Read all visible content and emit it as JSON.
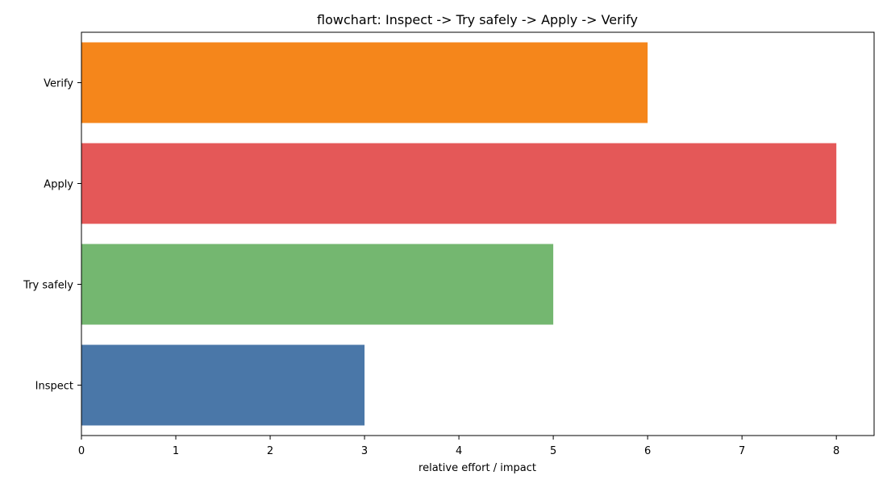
{
  "chart_data": {
    "type": "bar",
    "orientation": "horizontal",
    "title": "flowchart: Inspect -> Try safely -> Apply -> Verify",
    "xlabel": "relative effort / impact",
    "ylabel": "",
    "categories": [
      "Inspect",
      "Try safely",
      "Apply",
      "Verify"
    ],
    "values": [
      3,
      5,
      8,
      6
    ],
    "colors": [
      "#4a77a8",
      "#74b770",
      "#e45858",
      "#f5861b"
    ],
    "xlim": [
      0,
      8.4
    ],
    "xticks": [
      "0",
      "1",
      "2",
      "3",
      "4",
      "5",
      "6",
      "7",
      "8"
    ],
    "grid": false,
    "legend": "none"
  }
}
